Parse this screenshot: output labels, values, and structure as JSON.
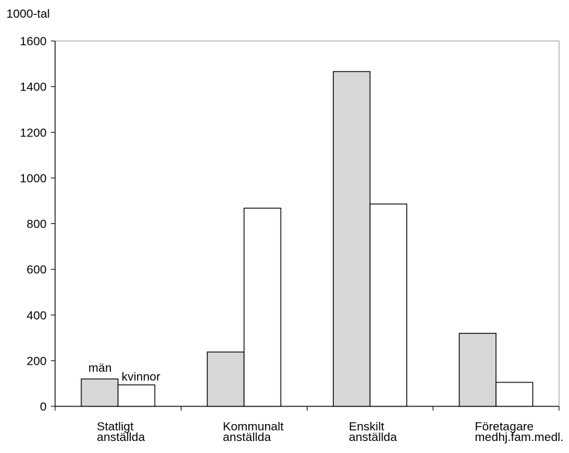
{
  "chart_data": {
    "type": "bar",
    "title": "",
    "unit_label": "1000-tal",
    "categories": [
      [
        "Statligt",
        "anställda"
      ],
      [
        "Kommunalt",
        "anställda"
      ],
      [
        "Enskilt",
        "anställda"
      ],
      [
        "Företagare",
        "medhj.fam.medl."
      ]
    ],
    "series": [
      {
        "name": "män",
        "values": [
          120,
          238,
          1466,
          320
        ],
        "color": "#d9d6d6"
      },
      {
        "name": "kvinnor",
        "values": [
          94,
          868,
          886,
          105
        ],
        "color": "#ffffff"
      }
    ],
    "ylim": [
      0,
      1600
    ],
    "yticks": [
      0,
      200,
      400,
      600,
      800,
      1000,
      1200,
      1400,
      1600
    ],
    "grid": false,
    "legend": "inline labels above first group"
  }
}
